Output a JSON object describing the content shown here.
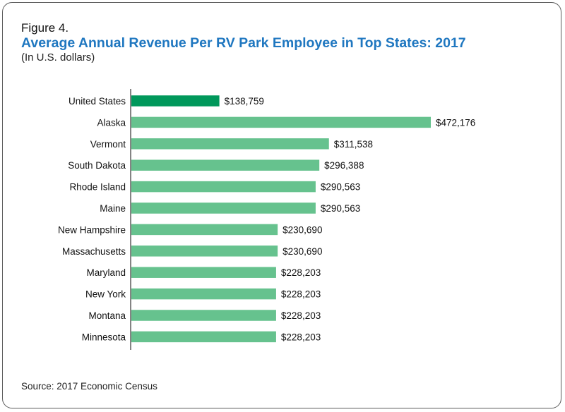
{
  "figure_label": "Figure 4.",
  "colors": {
    "title": "#1f77c0",
    "highlight_bar": "#00985b",
    "bar": "#66c28e",
    "axis": "#333333"
  },
  "chart_data": {
    "type": "bar",
    "orientation": "horizontal",
    "title": "Average Annual Revenue Per RV Park Employee in Top States: 2017",
    "subtitle": "(In U.S. dollars)",
    "xlim": [
      0,
      500000
    ],
    "grid": false,
    "highlight_category": "United States",
    "categories": [
      "United States",
      "Alaska",
      "Vermont",
      "South Dakota",
      "Rhode Island",
      "Maine",
      "New Hampshire",
      "Massachusetts",
      "Maryland",
      "New York",
      "Montana",
      "Minnesota"
    ],
    "values": [
      138759,
      472176,
      311538,
      296388,
      290563,
      290563,
      230690,
      230690,
      228203,
      228203,
      228203,
      228203
    ],
    "value_labels": [
      "$138,759",
      "$472,176",
      "$311,538",
      "$296,388",
      "$290,563",
      "$290,563",
      "$230,690",
      "$230,690",
      "$228,203",
      "$228,203",
      "$228,203",
      "$228,203"
    ]
  },
  "source": "Source: 2017 Economic Census"
}
